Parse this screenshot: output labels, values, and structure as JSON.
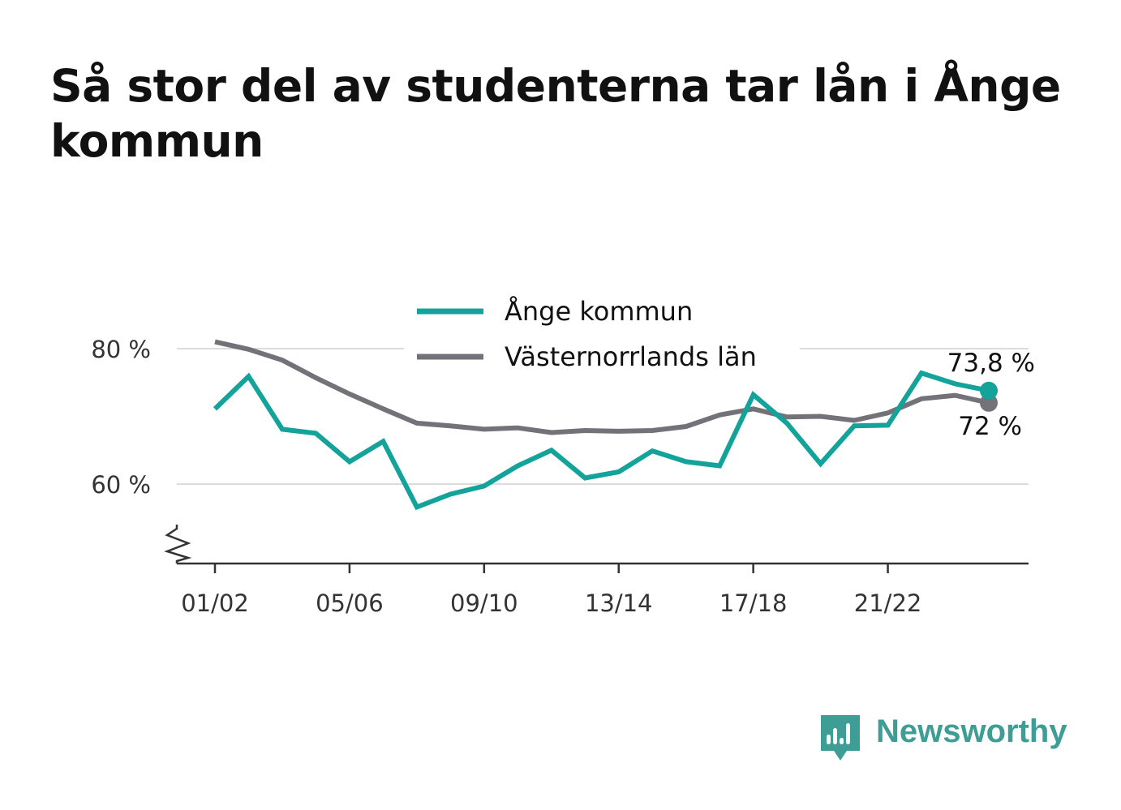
{
  "chart_data": {
    "type": "line",
    "title": "Så stor del av studenterna tar lån i Ånge kommun",
    "x": [
      "01/02",
      "02/03",
      "03/04",
      "04/05",
      "05/06",
      "06/07",
      "07/08",
      "08/09",
      "09/10",
      "10/11",
      "11/12",
      "12/13",
      "13/14",
      "14/15",
      "15/16",
      "16/17",
      "17/18",
      "18/19",
      "19/20",
      "20/21",
      "21/22",
      "22/23",
      "23/24",
      "24/25"
    ],
    "x_tick_labels": [
      "01/02",
      "05/06",
      "09/10",
      "13/14",
      "17/18",
      "21/22"
    ],
    "y_tick_values": [
      60,
      80
    ],
    "y_tick_labels": [
      "60 %",
      "80 %"
    ],
    "ylim": [
      48,
      88
    ],
    "y_axis_break": true,
    "grid": "horizontal",
    "legend_placement": "top-center",
    "series": [
      {
        "name": "Ånge kommun",
        "color": "#14a39a",
        "values": [
          71.1,
          75.9,
          68.1,
          67.5,
          63.3,
          66.3,
          56.6,
          58.5,
          59.7,
          62.7,
          65.0,
          60.9,
          61.8,
          64.9,
          63.3,
          62.7,
          73.2,
          69.0,
          63.0,
          68.6,
          68.7,
          76.4,
          74.8,
          73.8
        ],
        "end_label": "73,8 %"
      },
      {
        "name": "Västernorrlands län",
        "color": "#737278",
        "values": [
          81.0,
          79.9,
          78.3,
          75.7,
          73.3,
          71.1,
          69.0,
          68.6,
          68.1,
          68.3,
          67.6,
          67.9,
          67.8,
          67.9,
          68.5,
          70.2,
          71.1,
          69.9,
          70.0,
          69.4,
          70.5,
          72.6,
          73.1,
          72.0
        ],
        "end_label": "72 %"
      }
    ]
  },
  "branding": {
    "logo_text": "Newsworthy",
    "logo_color": "#3e9d94"
  }
}
